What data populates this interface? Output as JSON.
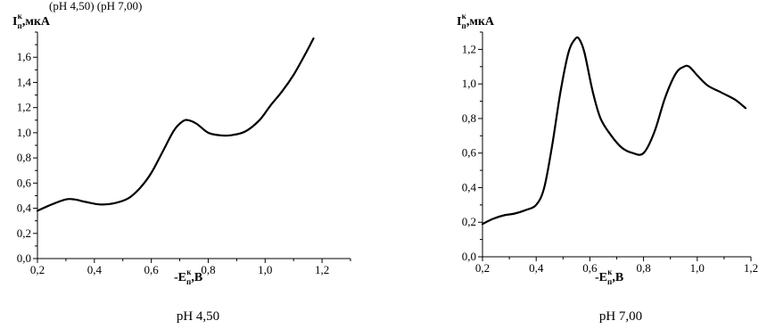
{
  "header_fragment": "(рН 4,50) (рН 7,00)",
  "chart_data": [
    {
      "type": "line",
      "title": "",
      "ylabel": {
        "main": "I",
        "sub": "п",
        "sup": "к",
        "rest": ",мкА"
      },
      "xlabel": {
        "main": "-E",
        "sub": "п",
        "sup": "к",
        "rest": ",В"
      },
      "caption": "pH 4,50",
      "xlim": [
        0.2,
        1.3
      ],
      "ylim": [
        0.0,
        1.8
      ],
      "xticks": [
        "0,2",
        "0,4",
        "0,6",
        "0,8",
        "1,0",
        "1,2"
      ],
      "xtick_values": [
        0.2,
        0.4,
        0.6,
        0.8,
        1.0,
        1.2
      ],
      "yticks": [
        "0,0",
        "0,2",
        "0,4",
        "0,6",
        "0,8",
        "1,0",
        "1,2",
        "1,4",
        "1,6"
      ],
      "ytick_values": [
        0.0,
        0.2,
        0.4,
        0.6,
        0.8,
        1.0,
        1.2,
        1.4,
        1.6
      ],
      "series": [
        {
          "x": [
            0.2,
            0.25,
            0.3,
            0.33,
            0.37,
            0.42,
            0.47,
            0.52,
            0.56,
            0.6,
            0.64,
            0.68,
            0.71,
            0.73,
            0.76,
            0.8,
            0.84,
            0.88,
            0.93,
            0.98,
            1.02,
            1.06,
            1.1,
            1.14,
            1.17
          ],
          "y": [
            0.38,
            0.43,
            0.47,
            0.47,
            0.45,
            0.43,
            0.44,
            0.48,
            0.56,
            0.68,
            0.85,
            1.02,
            1.09,
            1.1,
            1.07,
            1.0,
            0.98,
            0.98,
            1.01,
            1.1,
            1.22,
            1.33,
            1.46,
            1.62,
            1.75
          ]
        }
      ]
    },
    {
      "type": "line",
      "title": "",
      "ylabel": {
        "main": "I",
        "sub": "п",
        "sup": "к",
        "rest": ",мкА"
      },
      "xlabel": {
        "main": "-E",
        "sub": "п",
        "sup": "к",
        "rest": ",В"
      },
      "caption": "pH 7,00",
      "xlim": [
        0.2,
        1.2
      ],
      "ylim": [
        0.0,
        1.3
      ],
      "xticks": [
        "0,2",
        "0,4",
        "0,6",
        "0,8",
        "1,0",
        "1,2"
      ],
      "xtick_values": [
        0.2,
        0.4,
        0.6,
        0.8,
        1.0,
        1.2
      ],
      "yticks": [
        "0,0",
        "0,2",
        "0,4",
        "0,6",
        "0,8",
        "1,0",
        "1,2"
      ],
      "ytick_values": [
        0.0,
        0.2,
        0.4,
        0.6,
        0.8,
        1.0,
        1.2
      ],
      "series": [
        {
          "x": [
            0.2,
            0.24,
            0.28,
            0.32,
            0.36,
            0.4,
            0.43,
            0.46,
            0.49,
            0.52,
            0.545,
            0.56,
            0.58,
            0.61,
            0.64,
            0.68,
            0.72,
            0.76,
            0.8,
            0.84,
            0.88,
            0.92,
            0.95,
            0.97,
            1.0,
            1.04,
            1.09,
            1.14,
            1.18
          ],
          "y": [
            0.19,
            0.22,
            0.24,
            0.25,
            0.27,
            0.3,
            0.4,
            0.65,
            0.95,
            1.18,
            1.26,
            1.26,
            1.18,
            0.96,
            0.8,
            0.7,
            0.63,
            0.6,
            0.6,
            0.72,
            0.92,
            1.06,
            1.1,
            1.1,
            1.05,
            0.99,
            0.95,
            0.91,
            0.86
          ]
        }
      ]
    }
  ]
}
